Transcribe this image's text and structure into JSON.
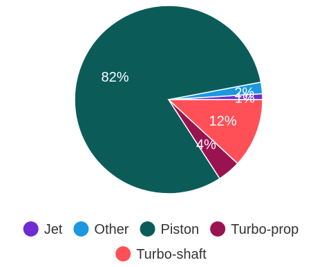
{
  "chart_data": {
    "type": "pie",
    "title": "",
    "legend_position": "bottom",
    "slices": [
      {
        "label": "Jet",
        "value": 1,
        "display": "1%",
        "color": "#6f2bd4"
      },
      {
        "label": "Other",
        "value": 2,
        "display": "2%",
        "color": "#1b98e0"
      },
      {
        "label": "Piston",
        "value": 82,
        "display": "82%",
        "color": "#0b5c59"
      },
      {
        "label": "Turbo-prop",
        "value": 4,
        "display": "4%",
        "color": "#9a1351"
      },
      {
        "label": "Turbo-shaft",
        "value": 12,
        "display": "12%",
        "color": "#ff5057"
      }
    ]
  }
}
